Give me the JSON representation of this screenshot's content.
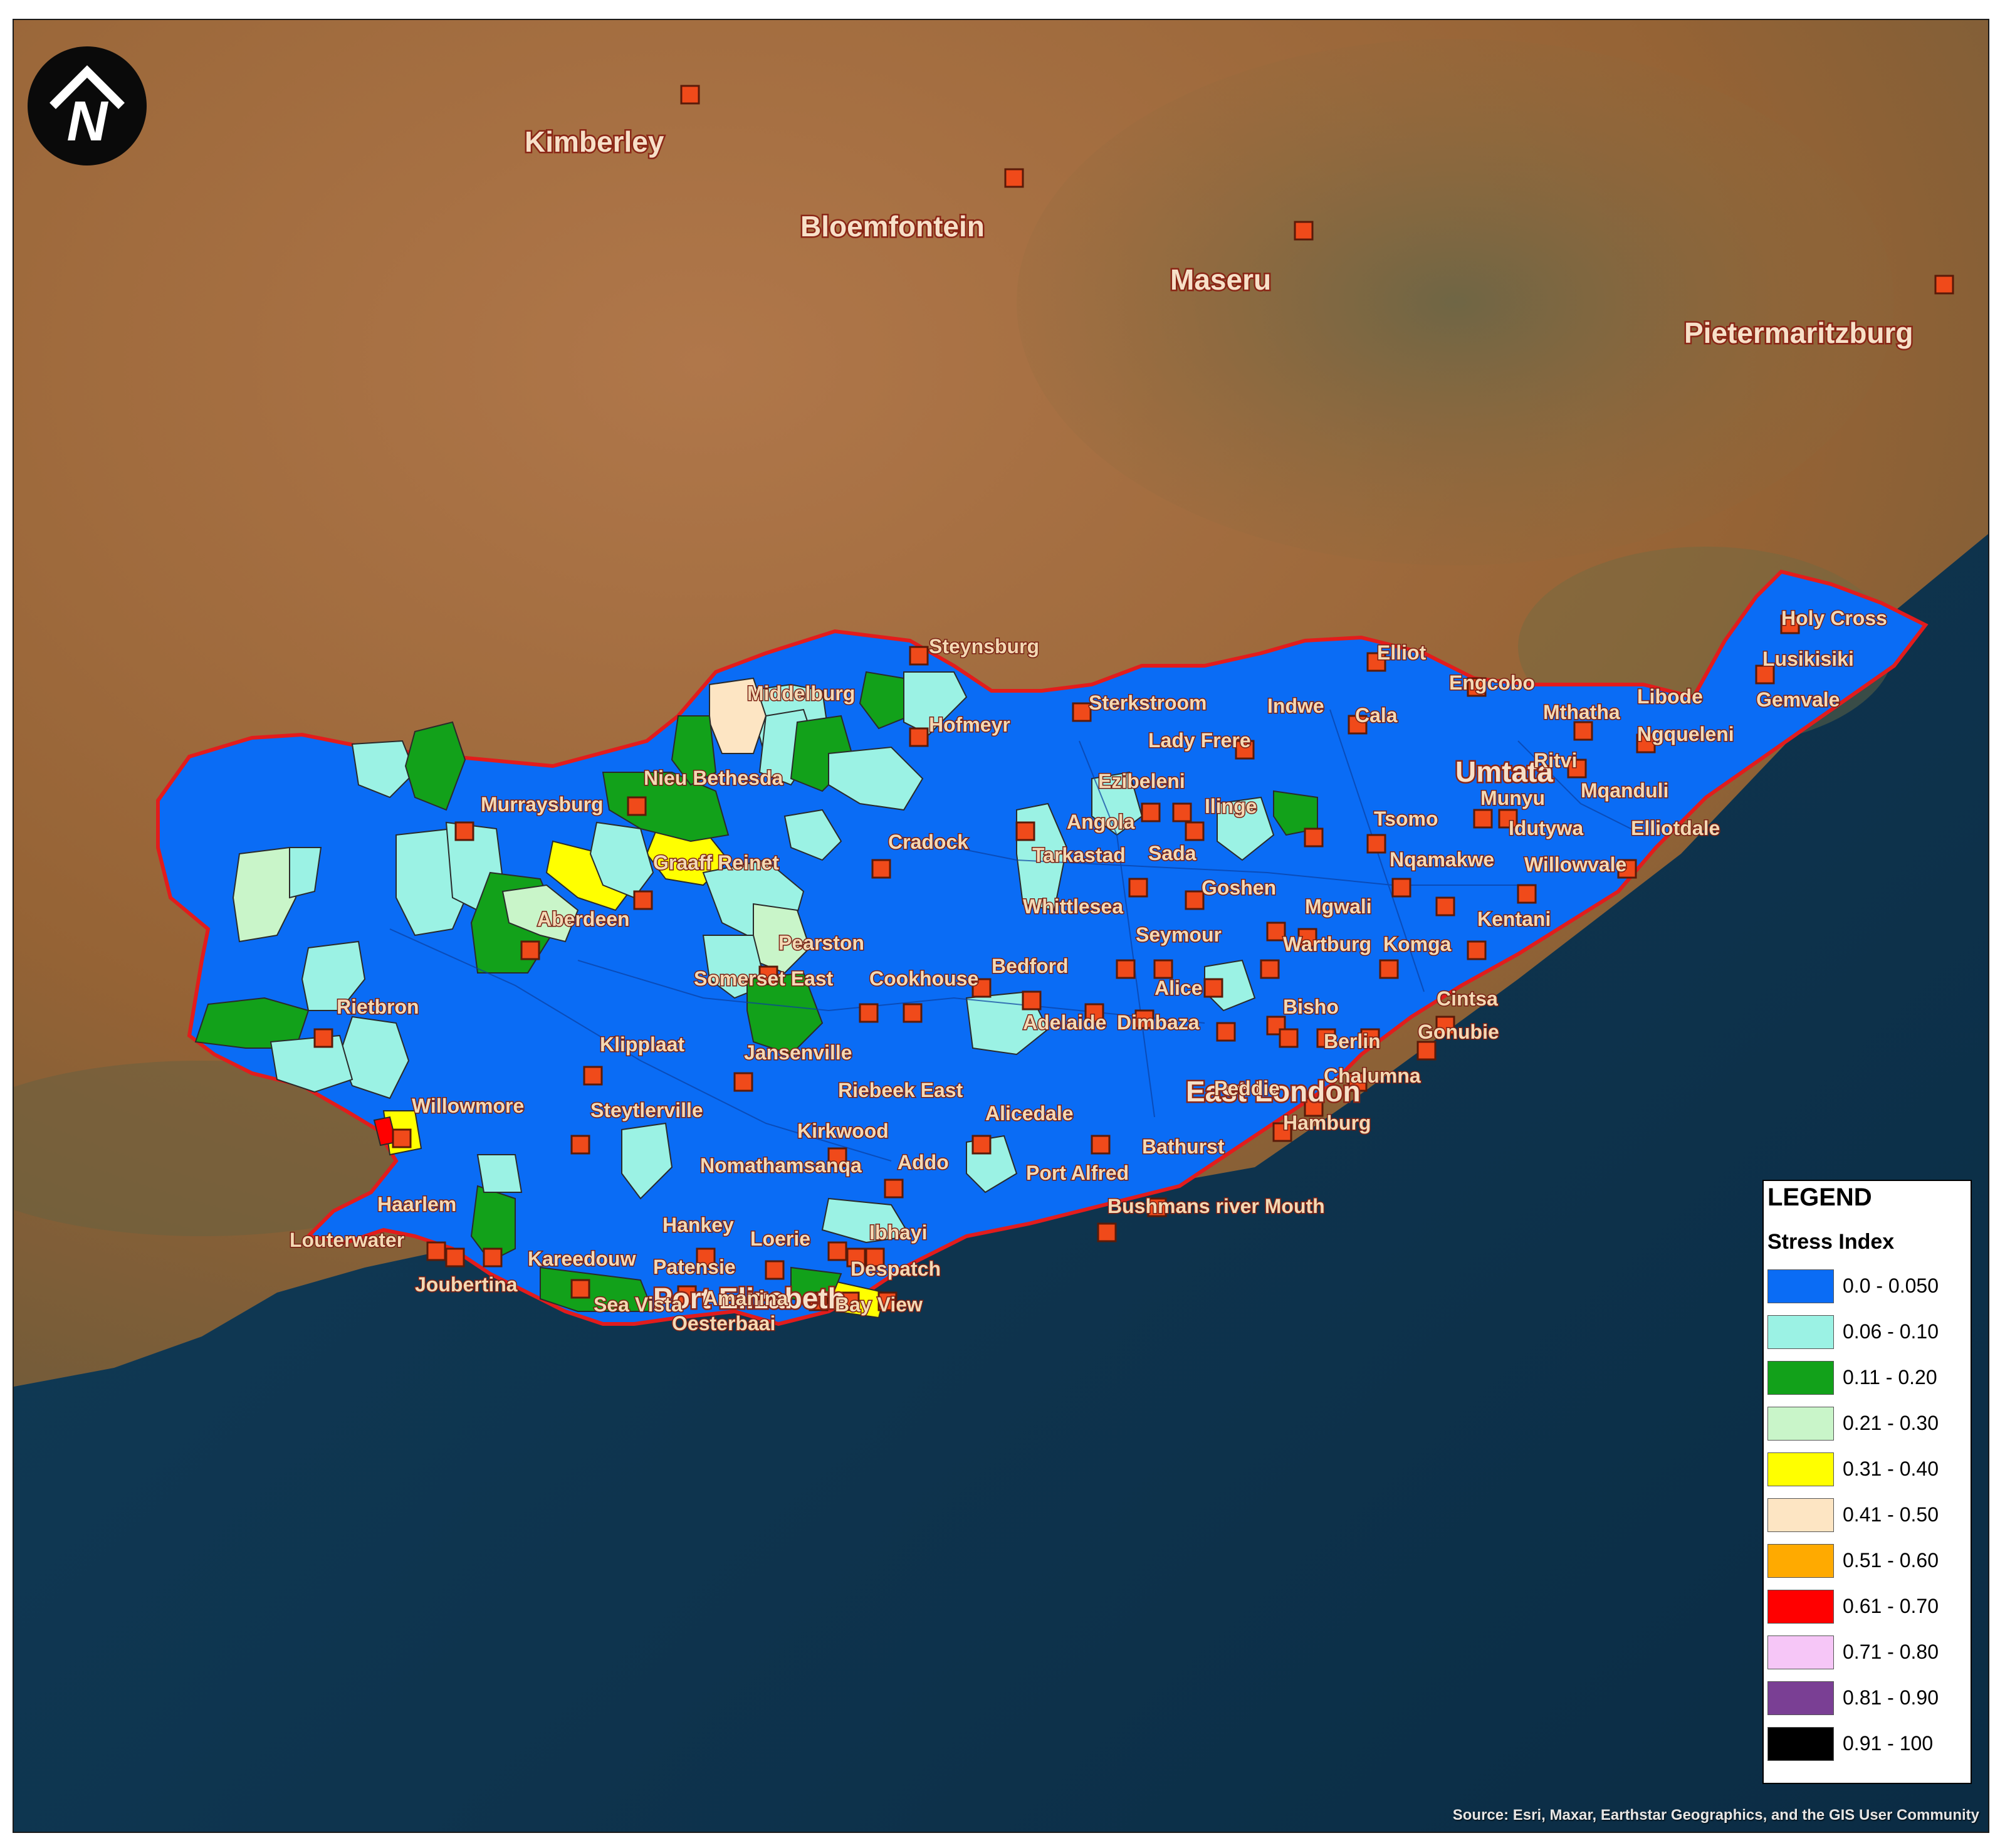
{
  "map": {
    "legend_title": "LEGEND",
    "legend_subtitle": "Stress Index",
    "legend_items": [
      {
        "label": "0.0 - 0.050",
        "color": "#0a6cf5"
      },
      {
        "label": "0.06 - 0.10",
        "color": "#9bf2e4"
      },
      {
        "label": "0.11 - 0.20",
        "color": "#12a11a"
      },
      {
        "label": "0.21 - 0.30",
        "color": "#c9f5c9"
      },
      {
        "label": "0.31 - 0.40",
        "color": "#ffff00"
      },
      {
        "label": "0.41 - 0.50",
        "color": "#fde5c3"
      },
      {
        "label": "0.51 - 0.60",
        "color": "#ffaa00"
      },
      {
        "label": "0.61 - 0.70",
        "color": "#ff0000"
      },
      {
        "label": "0.71 - 0.80",
        "color": "#f6c6f7"
      },
      {
        "label": "0.81 - 0.90",
        "color": "#7a3f94"
      },
      {
        "label": "0.91 - 100",
        "color": "#000000"
      }
    ],
    "attribution": "Source: Esri, Maxar, Earthstar Geographics, and the GIS User Community",
    "north_arrow_label": "N",
    "colors": {
      "land": "#9a6b3e",
      "ocean": "#0f3550",
      "boundary": "#e21c1c",
      "marker_fill": "#f04a1a",
      "marker_stroke": "#5a1a08"
    },
    "major_cities": [
      "Kimberley",
      "Bloemfontein",
      "Maseru",
      "Pietermaritzburg",
      "Umtata",
      "East London",
      "Port Elizabeth"
    ],
    "towns": [
      "Steynsburg",
      "Middelburg",
      "Hofmeyr",
      "Sterkstroom",
      "Elliot",
      "Engcobo",
      "Indwe",
      "Cala",
      "Lady Frere",
      "Holy Cross",
      "Lusikisiki",
      "Libode",
      "Mthatha",
      "Gemvale",
      "Ngqueleni",
      "Ritvi",
      "Mqanduli",
      "Munyu",
      "Idutywa",
      "Elliotdale",
      "Nqamakwe",
      "Willowvale",
      "Tsomo",
      "Ezibeleni",
      "Ilinge",
      "Angola",
      "Tarkastad",
      "Sada",
      "Goshen",
      "Mgwali",
      "Wartburg",
      "Komga",
      "Kentani",
      "Nieu Bethesda",
      "Murraysburg",
      "Graaff Reinet",
      "Cradock",
      "Aberdeen",
      "Pearston",
      "Whittlesea",
      "Seymour",
      "Somerset East",
      "Cookhouse",
      "Bedford",
      "Alice",
      "Bisho",
      "Cintsa",
      "Gonubie",
      "Berlin",
      "Rietbron",
      "Klipplaat",
      "Jansenville",
      "Adelaide",
      "Dimbaza",
      "Chalumna",
      "Peddie",
      "Riebeek East",
      "Willowmore",
      "Steytlerville",
      "Alicedale",
      "Hamburg",
      "Kirkwood",
      "Bathurst",
      "Nomathamsanqa",
      "Addo",
      "Port Alfred",
      "Bushmans river Mouth",
      "Haarlem",
      "Hankey",
      "Loerie",
      "Ibhayi",
      "Louterwater",
      "Kareedouw",
      "Patensie",
      "Despatch",
      "Joubertina",
      "Sea Vista",
      "Amanina",
      "Bay View",
      "Oesterbaai"
    ]
  }
}
